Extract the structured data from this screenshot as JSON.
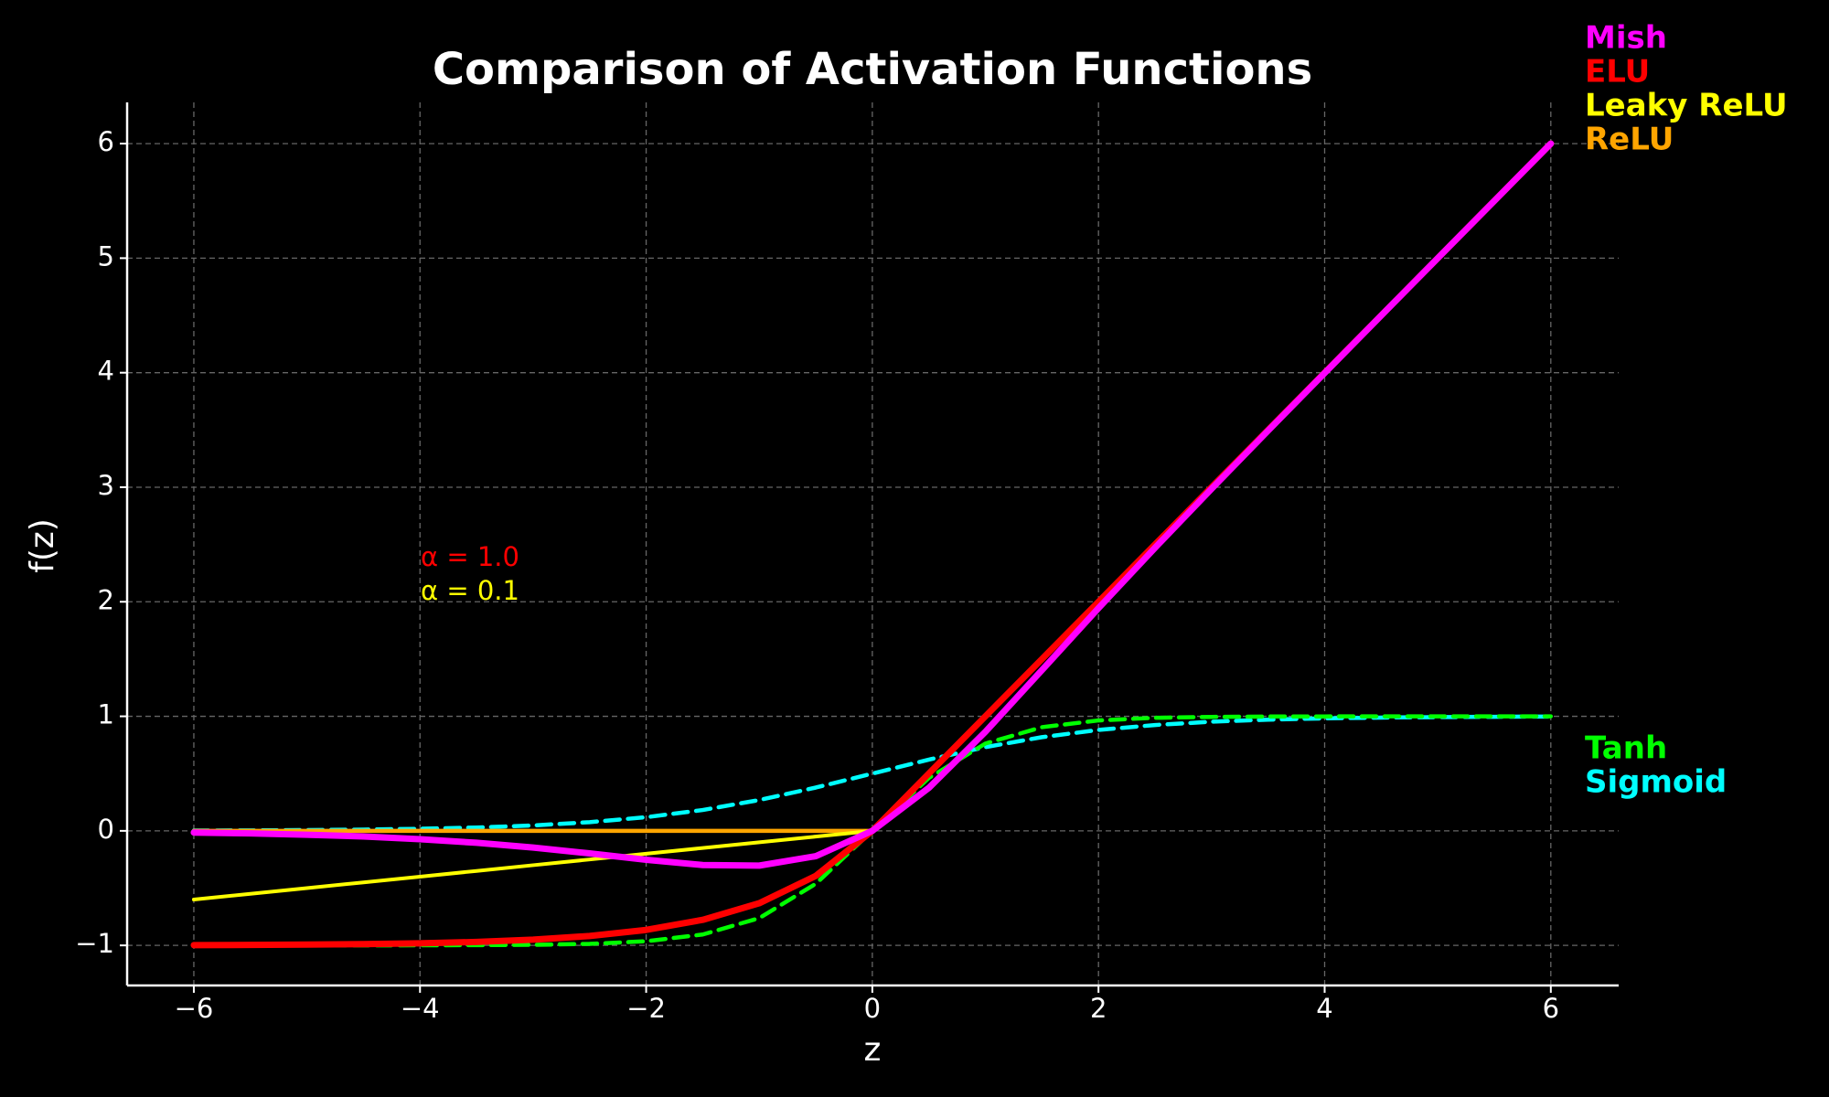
{
  "chart_data": {
    "type": "line",
    "title": "Comparison of Activation Functions",
    "x_label": "z",
    "y_label": "f(z)",
    "x": [
      -6,
      -5.5,
      -5,
      -4.5,
      -4,
      -3.5,
      -3,
      -2.5,
      -2,
      -1.5,
      -1,
      -0.5,
      0,
      0.5,
      1,
      1.5,
      2,
      2.5,
      3,
      3.5,
      4,
      4.5,
      5,
      5.5,
      6
    ],
    "series": [
      {
        "name": "Mish",
        "color": "#ff00ff",
        "width": 7,
        "dashed": false,
        "values": [
          -0.0149,
          -0.0224,
          -0.0336,
          -0.0495,
          -0.0726,
          -0.1043,
          -0.1457,
          -0.1967,
          -0.2525,
          -0.2981,
          -0.3034,
          -0.2208,
          0,
          0.3752,
          0.8651,
          1.4033,
          1.944,
          2.4715,
          2.9865,
          3.494,
          3.9974,
          4.4989,
          4.9996,
          5.4998,
          5.9999
        ]
      },
      {
        "name": "ELU",
        "color": "#ff0000",
        "width": 7,
        "dashed": false,
        "values": [
          -0.998,
          -0.996,
          -0.993,
          -0.989,
          -0.982,
          -0.97,
          -0.95,
          -0.918,
          -0.865,
          -0.777,
          -0.632,
          -0.393,
          0,
          0.5,
          1,
          1.5,
          2,
          2.5,
          3,
          3.5,
          4,
          4.5,
          5,
          5.5,
          6
        ]
      },
      {
        "name": "Leaky ReLU",
        "color": "#ffff00",
        "width": 4,
        "dashed": false,
        "values": [
          -0.6,
          -0.55,
          -0.5,
          -0.45,
          -0.4,
          -0.35,
          -0.3,
          -0.25,
          -0.2,
          -0.15,
          -0.1,
          -0.05,
          0,
          0.5,
          1,
          1.5,
          2,
          2.5,
          3,
          3.5,
          4,
          4.5,
          5,
          5.5,
          6
        ]
      },
      {
        "name": "ReLU",
        "color": "#ffa500",
        "width": 4.5,
        "dashed": false,
        "values": [
          0,
          0,
          0,
          0,
          0,
          0,
          0,
          0,
          0,
          0,
          0,
          0,
          0,
          0.5,
          1,
          1.5,
          2,
          2.5,
          3,
          3.5,
          4,
          4.5,
          5,
          5.5,
          6
        ]
      },
      {
        "name": "Tanh",
        "color": "#00ff00",
        "width": 4.5,
        "dashed": true,
        "values": [
          -1,
          -1,
          -1,
          -1,
          -0.999,
          -0.998,
          -0.995,
          -0.987,
          -0.964,
          -0.905,
          -0.762,
          -0.462,
          0,
          0.462,
          0.762,
          0.905,
          0.964,
          0.987,
          0.995,
          0.998,
          0.999,
          1,
          1,
          1,
          1
        ]
      },
      {
        "name": "Sigmoid",
        "color": "#00ffff",
        "width": 4.5,
        "dashed": true,
        "values": [
          0.0025,
          0.0041,
          0.0067,
          0.011,
          0.018,
          0.029,
          0.047,
          0.076,
          0.119,
          0.182,
          0.269,
          0.378,
          0.5,
          0.622,
          0.731,
          0.818,
          0.881,
          0.924,
          0.953,
          0.971,
          0.982,
          0.989,
          0.993,
          0.996,
          0.998
        ]
      }
    ],
    "annotations": [
      {
        "text": "α = 1.0",
        "color": "#ff0000"
      },
      {
        "text": "α = 0.1",
        "color": "#ffff00"
      }
    ],
    "xlim": [
      -6.59,
      6.6
    ],
    "ylim": [
      -1.35,
      6.36
    ],
    "xticks": [
      {
        "value": -6,
        "label": "−6"
      },
      {
        "value": -4,
        "label": "−4"
      },
      {
        "value": -2,
        "label": "−2"
      },
      0,
      2,
      4,
      6
    ],
    "yticks": [
      {
        "value": -1,
        "label": "−1"
      },
      0,
      1,
      2,
      3,
      4,
      5,
      6
    ],
    "grid": true
  }
}
